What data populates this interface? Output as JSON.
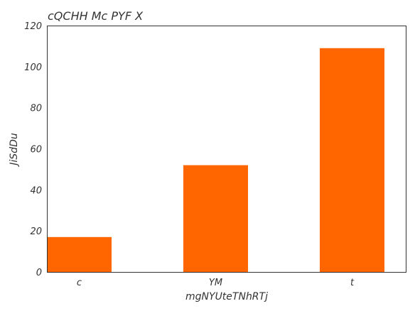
{
  "chart_data": {
    "type": "bar",
    "title": "cQCHH Mc PYF X",
    "xlabel": "mgNYUteTNhRTj",
    "ylabel": "JiSdDu",
    "categories": [
      "c",
      "YM",
      "t"
    ],
    "values": [
      17,
      52,
      109
    ],
    "ylim": [
      0,
      120
    ],
    "yticks": [
      0,
      20,
      40,
      60,
      80,
      100,
      120
    ],
    "grid": false,
    "legend": "none",
    "bar_color": "#ff6600"
  }
}
